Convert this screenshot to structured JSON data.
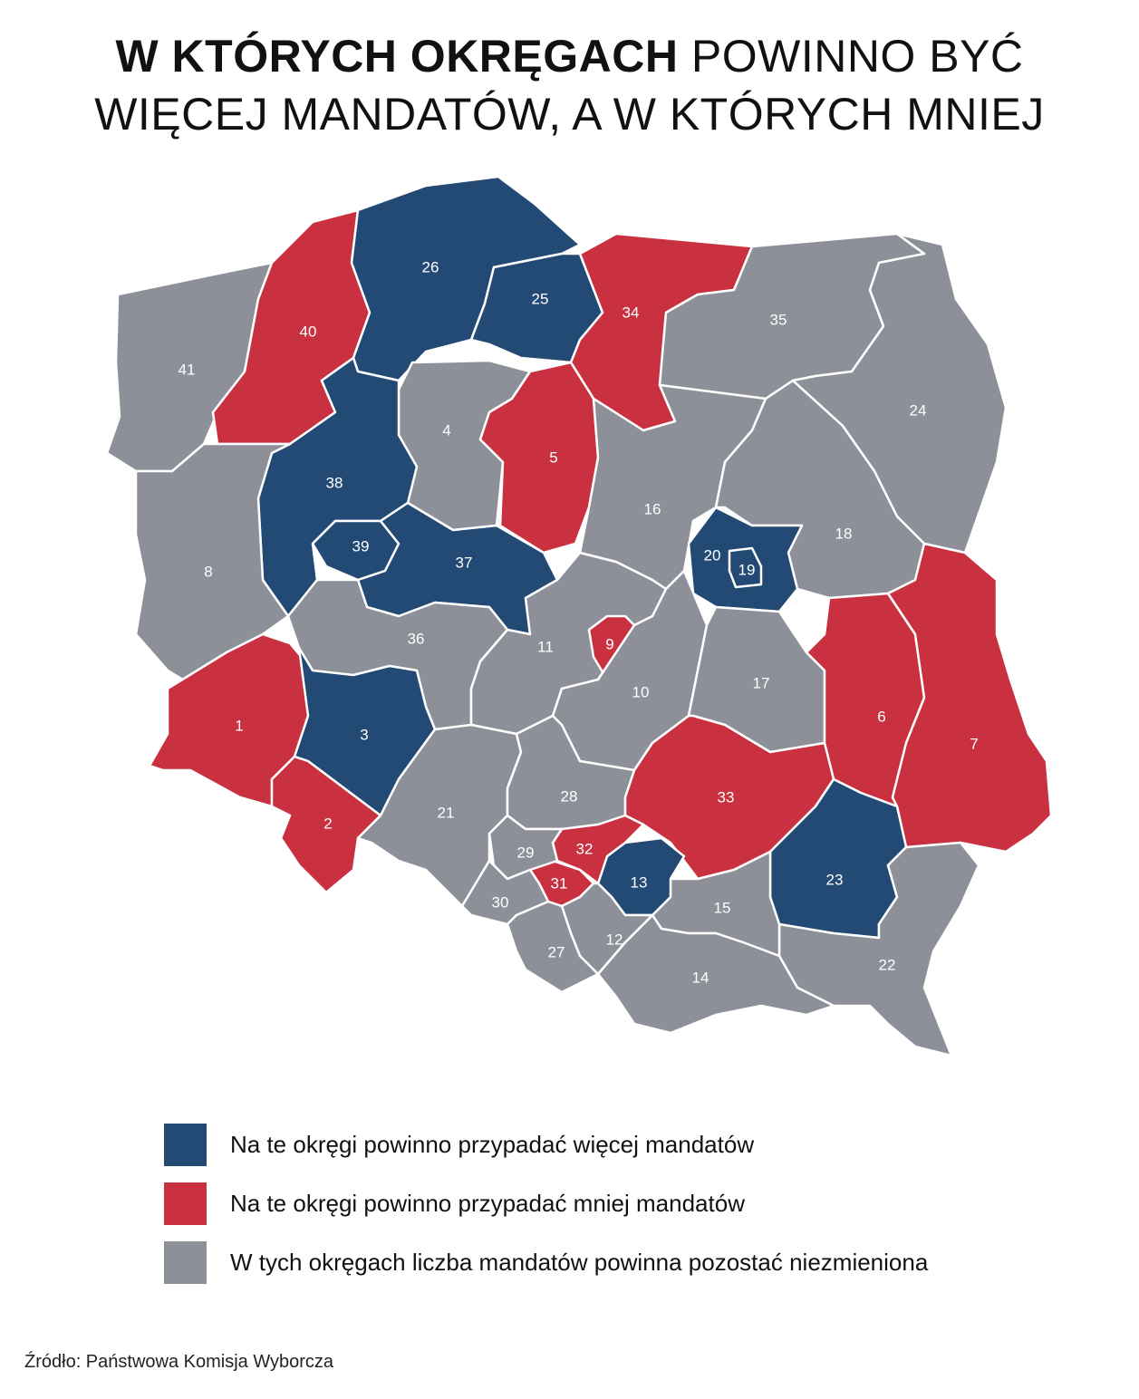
{
  "title": {
    "bold": "W KTÓRYCH OKRĘGACH",
    "line1_rest": "POWINNO BYĆ",
    "line2": "WIĘCEJ MANDATÓW, A W KTÓRYCH MNIEJ"
  },
  "colors": {
    "more": "#234a75",
    "less": "#c93140",
    "same": "#8e9099"
  },
  "districts": [
    {
      "id": "1",
      "category": "less"
    },
    {
      "id": "2",
      "category": "less"
    },
    {
      "id": "3",
      "category": "more"
    },
    {
      "id": "4",
      "category": "same"
    },
    {
      "id": "5",
      "category": "less"
    },
    {
      "id": "6",
      "category": "less"
    },
    {
      "id": "7",
      "category": "less"
    },
    {
      "id": "8",
      "category": "same"
    },
    {
      "id": "9",
      "category": "less"
    },
    {
      "id": "10",
      "category": "same"
    },
    {
      "id": "11",
      "category": "same"
    },
    {
      "id": "12",
      "category": "same"
    },
    {
      "id": "13",
      "category": "more"
    },
    {
      "id": "14",
      "category": "same"
    },
    {
      "id": "15",
      "category": "same"
    },
    {
      "id": "16",
      "category": "same"
    },
    {
      "id": "17",
      "category": "same"
    },
    {
      "id": "18",
      "category": "same"
    },
    {
      "id": "19",
      "category": "more"
    },
    {
      "id": "20",
      "category": "more"
    },
    {
      "id": "21",
      "category": "same"
    },
    {
      "id": "22",
      "category": "same"
    },
    {
      "id": "23",
      "category": "more"
    },
    {
      "id": "24",
      "category": "same"
    },
    {
      "id": "25",
      "category": "more"
    },
    {
      "id": "26",
      "category": "more"
    },
    {
      "id": "27",
      "category": "same"
    },
    {
      "id": "28",
      "category": "same"
    },
    {
      "id": "29",
      "category": "same"
    },
    {
      "id": "30",
      "category": "same"
    },
    {
      "id": "31",
      "category": "less"
    },
    {
      "id": "32",
      "category": "less"
    },
    {
      "id": "33",
      "category": "less"
    },
    {
      "id": "34",
      "category": "less"
    },
    {
      "id": "35",
      "category": "same"
    },
    {
      "id": "36",
      "category": "same"
    },
    {
      "id": "37",
      "category": "more"
    },
    {
      "id": "38",
      "category": "more"
    },
    {
      "id": "39",
      "category": "more"
    },
    {
      "id": "40",
      "category": "less"
    },
    {
      "id": "41",
      "category": "same"
    }
  ],
  "legend": {
    "more": "Na te okręgi powinno przypadać więcej mandatów",
    "less": "Na te okręgi powinno przypadać mniej mandatów",
    "same": "W tych okręgach liczba mandatów powinna pozostać niezmieniona"
  },
  "source": "Źródło: Państwowa Komisja Wyborcza"
}
